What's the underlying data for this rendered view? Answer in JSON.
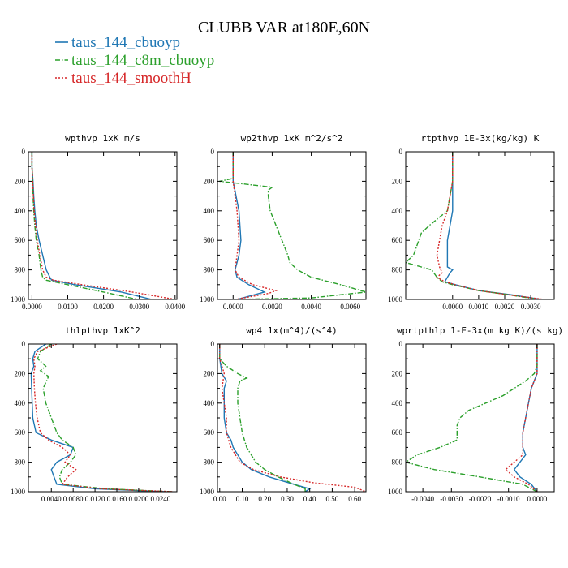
{
  "title": "CLUBB VAR at180E,60N",
  "legend": [
    {
      "label": "taus_144_cbuoyp",
      "color": "#1f77b4",
      "dash": "solid"
    },
    {
      "label": "taus_144_c8m_cbuoyp",
      "color": "#2ca02c",
      "dash": "dashdot"
    },
    {
      "label": "taus_144_smoothH",
      "color": "#d62728",
      "dash": "dotted"
    }
  ],
  "chart_data": [
    {
      "type": "line",
      "title": "wpthvp  1xK m/s",
      "xlim": [
        -0.001,
        0.0405
      ],
      "ylim": [
        1000,
        0
      ],
      "xticks": [
        0.0,
        0.01,
        0.02,
        0.03,
        0.04
      ],
      "xtick_labels": [
        "0.0000",
        "0.0100",
        "0.0200",
        "0.0300",
        "0.0400"
      ],
      "yticks": [
        0,
        200,
        400,
        600,
        800,
        1000
      ],
      "ytick_labels": [
        "0",
        "200",
        "400",
        "600",
        "800",
        "1000"
      ],
      "series": [
        {
          "y": [
            0,
            100,
            200,
            300,
            400,
            500,
            600,
            700,
            800,
            850,
            870,
            900,
            950,
            1000
          ],
          "x": [
            0.0,
            0.0,
            0.0003,
            0.0005,
            0.0008,
            0.0012,
            0.002,
            0.003,
            0.004,
            0.005,
            0.0055,
            0.012,
            0.025,
            0.0335
          ]
        },
        {
          "y": [
            0,
            100,
            200,
            300,
            400,
            500,
            600,
            700,
            800,
            850,
            870,
            900,
            950,
            1000
          ],
          "x": [
            0.0,
            0.0,
            0.0002,
            0.0003,
            0.0005,
            0.0008,
            0.0012,
            0.002,
            0.0025,
            0.003,
            0.004,
            0.01,
            0.02,
            0.0295
          ]
        },
        {
          "y": [
            0,
            100,
            200,
            300,
            400,
            500,
            600,
            700,
            800,
            850,
            870,
            900,
            950,
            1000
          ],
          "x": [
            0.0,
            0.0,
            0.0002,
            0.0004,
            0.0006,
            0.001,
            0.0015,
            0.0022,
            0.003,
            0.004,
            0.006,
            0.014,
            0.028,
            0.04
          ]
        }
      ]
    },
    {
      "type": "line",
      "title": "wp2thvp  1xK m^2/s^2",
      "xlim": [
        -0.0008,
        0.0068
      ],
      "ylim": [
        1000,
        0
      ],
      "xticks": [
        0.0,
        0.002,
        0.004,
        0.006
      ],
      "xtick_labels": [
        "0.0000",
        "0.0020",
        "0.0040",
        "0.0060"
      ],
      "yticks": [
        0,
        200,
        400,
        600,
        800,
        1000
      ],
      "ytick_labels": [
        "0",
        "200",
        "400",
        "600",
        "800",
        "1000"
      ],
      "series": [
        {
          "y": [
            0,
            200,
            400,
            600,
            700,
            800,
            850,
            900,
            950,
            1000
          ],
          "x": [
            0.0,
            0.0,
            0.0003,
            0.0004,
            0.0003,
            0.0001,
            0.0002,
            0.0008,
            0.0016,
            0.0002
          ]
        },
        {
          "y": [
            0,
            180,
            200,
            210,
            240,
            260,
            300,
            400,
            500,
            600,
            700,
            750,
            800,
            850,
            900,
            950,
            990,
            1000
          ],
          "x": [
            0.0,
            0.0,
            -0.0007,
            0.0,
            0.002,
            0.0018,
            0.0018,
            0.0019,
            0.0022,
            0.0025,
            0.0028,
            0.0029,
            0.0033,
            0.004,
            0.0055,
            0.0068,
            0.004,
            0.0
          ]
        },
        {
          "y": [
            0,
            200,
            400,
            600,
            700,
            800,
            850,
            900,
            940,
            960,
            1000
          ],
          "x": [
            0.0,
            0.0,
            0.0002,
            0.0003,
            0.0002,
            0.0001,
            0.0003,
            0.001,
            0.0022,
            0.0018,
            0.0001
          ]
        }
      ]
    },
    {
      "type": "line",
      "title": "rtpthvp  1E-3x(kg/kg) K",
      "xlim": [
        -0.0018,
        0.0039
      ],
      "ylim": [
        1000,
        0
      ],
      "xticks": [
        0.0,
        0.001,
        0.002,
        0.003
      ],
      "xtick_labels": [
        "0.0000",
        "0.0010",
        "0.0020",
        "0.0030"
      ],
      "yticks": [
        0,
        200,
        400,
        600,
        800,
        1000
      ],
      "ytick_labels": [
        "0",
        "200",
        "400",
        "600",
        "800",
        "1000"
      ],
      "series": [
        {
          "y": [
            0,
            200,
            400,
            500,
            600,
            700,
            780,
            800,
            820,
            850,
            880,
            900,
            940,
            970,
            1000
          ],
          "x": [
            0.0,
            0.0,
            0.0,
            -0.0001,
            -0.0002,
            -0.0002,
            -0.0002,
            0.0,
            -0.0001,
            -0.0002,
            -0.0003,
            0.0001,
            0.001,
            0.0023,
            0.0034
          ]
        },
        {
          "y": [
            0,
            200,
            400,
            500,
            550,
            600,
            700,
            750,
            780,
            800,
            850,
            880,
            900,
            940,
            970,
            1000
          ],
          "x": [
            0.0,
            0.0,
            -0.0002,
            -0.0009,
            -0.0012,
            -0.0013,
            -0.0015,
            -0.0018,
            -0.0012,
            -0.0008,
            -0.0006,
            -0.0004,
            0.0,
            0.001,
            0.0022,
            0.0033
          ]
        },
        {
          "y": [
            0,
            200,
            400,
            500,
            600,
            700,
            780,
            820,
            850,
            880,
            900,
            940,
            970,
            1000
          ],
          "x": [
            0.0,
            0.0,
            -0.0002,
            -0.0004,
            -0.0005,
            -0.0006,
            -0.0005,
            -0.0004,
            -0.0006,
            -0.0003,
            0.0001,
            0.001,
            0.0022,
            0.0035
          ]
        }
      ]
    },
    {
      "type": "line",
      "title": "thlpthvp  1xK^2",
      "xlim": [
        -0.0002,
        0.027
      ],
      "ylim": [
        1000,
        0
      ],
      "xticks": [
        0.004,
        0.008,
        0.012,
        0.016,
        0.02,
        0.024
      ],
      "xtick_labels": [
        "0.0040",
        "0.0080",
        "0.0120",
        "0.0160",
        "0.0200",
        "0.0240"
      ],
      "yticks": [
        0,
        200,
        400,
        600,
        800,
        1000
      ],
      "ytick_labels": [
        "0",
        "200",
        "400",
        "600",
        "800",
        "1000"
      ],
      "series": [
        {
          "y": [
            0,
            50,
            100,
            150,
            200,
            300,
            400,
            500,
            600,
            650,
            700,
            750,
            800,
            850,
            900,
            950,
            980,
            1000
          ],
          "x": [
            0.003,
            0.001,
            0.0006,
            0.0008,
            0.0003,
            0.0004,
            0.0005,
            0.0006,
            0.0012,
            0.004,
            0.008,
            0.0075,
            0.005,
            0.004,
            0.0045,
            0.005,
            0.012,
            0.025
          ]
        },
        {
          "y": [
            0,
            50,
            100,
            150,
            180,
            220,
            300,
            400,
            500,
            600,
            650,
            700,
            750,
            800,
            850,
            900,
            950,
            980,
            1000
          ],
          "x": [
            0.004,
            0.002,
            0.0015,
            0.003,
            0.002,
            0.0035,
            0.0025,
            0.003,
            0.004,
            0.005,
            0.006,
            0.008,
            0.0085,
            0.0075,
            0.006,
            0.0055,
            0.006,
            0.014,
            0.026
          ]
        },
        {
          "y": [
            0,
            50,
            100,
            150,
            200,
            300,
            400,
            500,
            600,
            650,
            700,
            750,
            800,
            850,
            900,
            950,
            980,
            1000
          ],
          "x": [
            0.005,
            0.0015,
            0.0008,
            0.001,
            0.0008,
            0.0009,
            0.0011,
            0.0014,
            0.002,
            0.0035,
            0.006,
            0.0075,
            0.0065,
            0.0085,
            0.007,
            0.006,
            0.013,
            0.0265
          ]
        }
      ]
    },
    {
      "type": "line",
      "title": "wp4  1x(m^4)/(s^4)",
      "xlim": [
        -0.01,
        0.65
      ],
      "ylim": [
        1000,
        0
      ],
      "xticks": [
        0.0,
        0.1,
        0.2,
        0.3,
        0.4,
        0.5,
        0.6
      ],
      "xtick_labels": [
        "0.00",
        "0.10",
        "0.20",
        "0.30",
        "0.40",
        "0.50",
        "0.60"
      ],
      "yticks": [
        0,
        200,
        400,
        600,
        800,
        1000
      ],
      "ytick_labels": [
        "0",
        "200",
        "400",
        "600",
        "800",
        "1000"
      ],
      "series": [
        {
          "y": [
            0,
            100,
            200,
            250,
            300,
            400,
            500,
            600,
            650,
            700,
            750,
            800,
            850,
            900,
            950,
            980,
            1000
          ],
          "x": [
            0.0,
            0.0,
            0.01,
            0.03,
            0.02,
            0.02,
            0.02,
            0.03,
            0.05,
            0.06,
            0.08,
            0.1,
            0.14,
            0.22,
            0.33,
            0.4,
            0.38
          ]
        },
        {
          "y": [
            0,
            100,
            150,
            200,
            230,
            250,
            300,
            400,
            500,
            600,
            700,
            750,
            800,
            850,
            900,
            950,
            980,
            1000
          ],
          "x": [
            0.0,
            0.0,
            0.03,
            0.08,
            0.12,
            0.09,
            0.08,
            0.08,
            0.09,
            0.1,
            0.12,
            0.14,
            0.16,
            0.2,
            0.26,
            0.33,
            0.38,
            0.38
          ]
        },
        {
          "y": [
            0,
            100,
            200,
            300,
            400,
            500,
            600,
            700,
            800,
            850,
            900,
            940,
            970,
            1000
          ],
          "x": [
            0.0,
            0.0,
            0.02,
            0.01,
            0.02,
            0.03,
            0.03,
            0.05,
            0.09,
            0.15,
            0.27,
            0.42,
            0.6,
            0.65
          ]
        }
      ]
    },
    {
      "type": "line",
      "title": "wprtpthlp  1-E-3x(m kg K)/(s kg)",
      "xlim": [
        -0.0046,
        0.0006
      ],
      "ylim": [
        1000,
        0
      ],
      "xticks": [
        -0.004,
        -0.003,
        -0.002,
        -0.001,
        0.0
      ],
      "xtick_labels": [
        "-0.0040",
        "-0.0030",
        "-0.0020",
        "-0.0010",
        "0.0000"
      ],
      "yticks": [
        0,
        200,
        400,
        600,
        800,
        1000
      ],
      "ytick_labels": [
        "0",
        "200",
        "400",
        "600",
        "800",
        "1000"
      ],
      "series": [
        {
          "y": [
            0,
            200,
            300,
            400,
            500,
            600,
            700,
            750,
            800,
            850,
            900,
            950,
            1000
          ],
          "x": [
            0.0,
            0.0,
            -0.0002,
            -0.0003,
            -0.0004,
            -0.0005,
            -0.0005,
            -0.0004,
            -0.0006,
            -0.0008,
            -0.0006,
            -0.0002,
            0.0
          ]
        },
        {
          "y": [
            0,
            150,
            200,
            250,
            300,
            350,
            400,
            450,
            500,
            550,
            600,
            650,
            700,
            750,
            800,
            850,
            900,
            950,
            1000
          ],
          "x": [
            0.0,
            0.0,
            -0.0001,
            -0.0004,
            -0.0008,
            -0.0012,
            -0.0018,
            -0.0024,
            -0.0027,
            -0.0028,
            -0.0028,
            -0.0028,
            -0.0034,
            -0.0042,
            -0.0046,
            -0.0036,
            -0.002,
            -0.0005,
            0.0
          ]
        },
        {
          "y": [
            0,
            200,
            300,
            400,
            500,
            600,
            700,
            750,
            800,
            850,
            900,
            950,
            1000
          ],
          "x": [
            0.0,
            0.0,
            -0.0002,
            -0.0003,
            -0.0004,
            -0.0005,
            -0.0005,
            -0.0005,
            -0.0008,
            -0.0011,
            -0.0008,
            -0.0003,
            0.0
          ]
        }
      ]
    }
  ]
}
